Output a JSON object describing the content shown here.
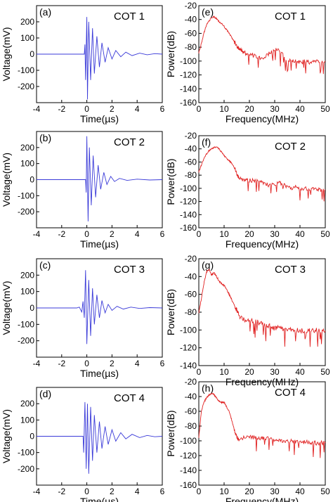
{
  "colors": {
    "time_trace": "#3a3ad8",
    "spectrum_trace": "#e02020",
    "axes": "#000000"
  },
  "chart_data": [
    {
      "type": "line",
      "panel": "(a)",
      "label": "COT 1",
      "xlabel": "Time(µs)",
      "ylabel": "Voltage(mV)",
      "xlim": [
        -4,
        6
      ],
      "ylim": [
        -300,
        300
      ],
      "xticks": [
        "-4",
        "-2",
        "0",
        "2",
        "4",
        "6"
      ],
      "yticks": [
        "-200",
        "-100",
        "0",
        "100",
        "200"
      ],
      "series": [
        {
          "values": [
            [
              -4,
              0
            ],
            [
              -0.2,
              0
            ],
            [
              -0.15,
              60
            ],
            [
              -0.1,
              -160
            ],
            [
              0,
              230
            ],
            [
              0.05,
              -280
            ],
            [
              0.15,
              200
            ],
            [
              0.3,
              -160
            ],
            [
              0.45,
              160
            ],
            [
              0.6,
              -120
            ],
            [
              0.8,
              110
            ],
            [
              1,
              -80
            ],
            [
              1.2,
              70
            ],
            [
              1.45,
              -50
            ],
            [
              1.7,
              40
            ],
            [
              2,
              -30
            ],
            [
              2.3,
              22
            ],
            [
              2.7,
              -16
            ],
            [
              3.1,
              12
            ],
            [
              3.6,
              -9
            ],
            [
              4.2,
              6
            ],
            [
              4.8,
              -4
            ],
            [
              5.4,
              3
            ],
            [
              6,
              0
            ]
          ]
        }
      ]
    },
    {
      "type": "line",
      "panel": "(e)",
      "label": "COT 1",
      "xlabel": "Frequency(MHz)",
      "ylabel": "Power(dB)",
      "xlim": [
        0,
        50
      ],
      "ylim": [
        -160,
        -20
      ],
      "xticks": [
        "0",
        "10",
        "20",
        "30",
        "40",
        "50"
      ],
      "yticks": [
        "-160",
        "-140",
        "-120",
        "-100",
        "-80",
        "-60",
        "-40",
        "-20"
      ],
      "series": [
        {
          "values": [
            [
              0,
              -88
            ],
            [
              1,
              -75
            ],
            [
              2,
              -60
            ],
            [
              3,
              -48
            ],
            [
              4,
              -42
            ],
            [
              5,
              -38
            ],
            [
              6,
              -36
            ],
            [
              7,
              -39
            ],
            [
              8,
              -43
            ],
            [
              9,
              -46
            ],
            [
              10,
              -50
            ],
            [
              11,
              -55
            ],
            [
              12,
              -60
            ],
            [
              13,
              -66
            ],
            [
              14,
              -72
            ],
            [
              15,
              -78
            ],
            [
              16,
              -82
            ],
            [
              17,
              -85
            ],
            [
              18,
              -88
            ],
            [
              20,
              -90
            ],
            [
              22,
              -92
            ],
            [
              24,
              -96
            ],
            [
              26,
              -95
            ],
            [
              28,
              -88
            ],
            [
              30,
              -82
            ],
            [
              32,
              -86
            ],
            [
              34,
              -95
            ],
            [
              36,
              -100
            ],
            [
              38,
              -100
            ],
            [
              40,
              -102
            ],
            [
              42,
              -100
            ],
            [
              44,
              -102
            ],
            [
              46,
              -100
            ],
            [
              48,
              -101
            ],
            [
              50,
              -100
            ]
          ]
        }
      ]
    },
    {
      "type": "line",
      "panel": "(b)",
      "label": "COT 2",
      "xlabel": "Time(µs)",
      "ylabel": "Voltage(mV)",
      "xlim": [
        -4,
        6
      ],
      "ylim": [
        -300,
        300
      ],
      "xticks": [
        "-4",
        "-2",
        "0",
        "2",
        "4",
        "6"
      ],
      "yticks": [
        "-200",
        "-100",
        "0",
        "100",
        "200"
      ],
      "series": [
        {
          "values": [
            [
              -4,
              0
            ],
            [
              -0.1,
              0
            ],
            [
              -0.05,
              -80
            ],
            [
              0,
              270
            ],
            [
              0.1,
              -260
            ],
            [
              0.2,
              200
            ],
            [
              0.35,
              -160
            ],
            [
              0.5,
              150
            ],
            [
              0.7,
              -110
            ],
            [
              0.9,
              90
            ],
            [
              1.1,
              -60
            ],
            [
              1.35,
              45
            ],
            [
              1.6,
              -30
            ],
            [
              1.9,
              20
            ],
            [
              2.2,
              -12
            ],
            [
              2.6,
              8
            ],
            [
              3.2,
              -5
            ],
            [
              4,
              3
            ],
            [
              5,
              -2
            ],
            [
              6,
              0
            ]
          ]
        }
      ]
    },
    {
      "type": "line",
      "panel": "(f)",
      "label": "COT 2",
      "xlabel": "Frequency(MHz)",
      "ylabel": "Power(dB)",
      "xlim": [
        0,
        50
      ],
      "ylim": [
        -160,
        -20
      ],
      "xticks": [
        "0",
        "10",
        "20",
        "30",
        "40",
        "50"
      ],
      "yticks": [
        "-160",
        "-140",
        "-120",
        "-100",
        "-80",
        "-60",
        "-40",
        "-20"
      ],
      "series": [
        {
          "values": [
            [
              0,
              -75
            ],
            [
              1,
              -65
            ],
            [
              2,
              -55
            ],
            [
              3,
              -48
            ],
            [
              4,
              -43
            ],
            [
              5,
              -40
            ],
            [
              6,
              -38
            ],
            [
              7,
              -37
            ],
            [
              8,
              -40
            ],
            [
              9,
              -45
            ],
            [
              10,
              -50
            ],
            [
              11,
              -55
            ],
            [
              12,
              -58
            ],
            [
              13,
              -62
            ],
            [
              14,
              -68
            ],
            [
              15,
              -78
            ],
            [
              16,
              -85
            ],
            [
              18,
              -87
            ],
            [
              20,
              -88
            ],
            [
              22,
              -88
            ],
            [
              24,
              -90
            ],
            [
              26,
              -92
            ],
            [
              28,
              -96
            ],
            [
              30,
              -94
            ],
            [
              32,
              -92
            ],
            [
              34,
              -96
            ],
            [
              36,
              -100
            ],
            [
              38,
              -98
            ],
            [
              40,
              -101
            ],
            [
              42,
              -100
            ],
            [
              44,
              -102
            ],
            [
              46,
              -100
            ],
            [
              48,
              -103
            ],
            [
              50,
              -102
            ]
          ]
        }
      ]
    },
    {
      "type": "line",
      "panel": "(c)",
      "label": "COT 3",
      "xlabel": "Time(µs)",
      "ylabel": "Voltage(mV)",
      "xlim": [
        -4,
        6
      ],
      "ylim": [
        -300,
        300
      ],
      "xticks": [
        "-4",
        "-2",
        "0",
        "2",
        "4",
        "6"
      ],
      "yticks": [
        "-200",
        "-100",
        "0",
        "100",
        "200"
      ],
      "series": [
        {
          "values": [
            [
              -4,
              0
            ],
            [
              -0.8,
              0
            ],
            [
              -0.6,
              5
            ],
            [
              -0.4,
              -25
            ],
            [
              -0.3,
              40
            ],
            [
              -0.2,
              -60
            ],
            [
              -0.1,
              230
            ],
            [
              0,
              -220
            ],
            [
              0.15,
              170
            ],
            [
              0.3,
              -170
            ],
            [
              0.45,
              120
            ],
            [
              0.6,
              -100
            ],
            [
              0.8,
              80
            ],
            [
              1,
              -60
            ],
            [
              1.2,
              45
            ],
            [
              1.45,
              -30
            ],
            [
              1.7,
              22
            ],
            [
              2,
              -15
            ],
            [
              2.4,
              10
            ],
            [
              2.9,
              -7
            ],
            [
              3.5,
              5
            ],
            [
              4.2,
              -3
            ],
            [
              5,
              2
            ],
            [
              6,
              0
            ]
          ]
        }
      ]
    },
    {
      "type": "line",
      "panel": "(g)",
      "label": "COT 3",
      "xlabel": "Frequency(MHz)",
      "ylabel": "Power(dB)",
      "xlim": [
        0,
        50
      ],
      "ylim": [
        -140,
        -20
      ],
      "xticks": [
        "0",
        "10",
        "20",
        "30",
        "40",
        "50"
      ],
      "yticks": [
        "-140",
        "-120",
        "-100",
        "-80",
        "-60",
        "-40",
        "-20"
      ],
      "series": [
        {
          "values": [
            [
              0,
              -80
            ],
            [
              1,
              -65
            ],
            [
              2,
              -48
            ],
            [
              3,
              -35
            ],
            [
              4,
              -32
            ],
            [
              5,
              -38
            ],
            [
              6,
              -36
            ],
            [
              7,
              -40
            ],
            [
              8,
              -45
            ],
            [
              9,
              -48
            ],
            [
              10,
              -50
            ],
            [
              11,
              -55
            ],
            [
              12,
              -60
            ],
            [
              13,
              -66
            ],
            [
              14,
              -72
            ],
            [
              15,
              -78
            ],
            [
              16,
              -84
            ],
            [
              18,
              -88
            ],
            [
              20,
              -88
            ],
            [
              22,
              -90
            ],
            [
              24,
              -92
            ],
            [
              26,
              -95
            ],
            [
              28,
              -96
            ],
            [
              30,
              -98
            ],
            [
              32,
              -98
            ],
            [
              34,
              -100
            ],
            [
              36,
              -100
            ],
            [
              38,
              -101
            ],
            [
              40,
              -100
            ],
            [
              42,
              -102
            ],
            [
              44,
              -101
            ],
            [
              46,
              -100
            ],
            [
              48,
              -102
            ],
            [
              50,
              -101
            ]
          ]
        }
      ]
    },
    {
      "type": "line",
      "panel": "(d)",
      "label": "COT 4",
      "xlabel": "Time(µs)",
      "ylabel": "Voltage(mV)",
      "xlim": [
        -4,
        6
      ],
      "ylim": [
        -300,
        300
      ],
      "xticks": [
        "-4",
        "-2",
        "0",
        "2",
        "4",
        "6"
      ],
      "yticks": [
        "-200",
        "-100",
        "0",
        "100",
        "200"
      ],
      "series": [
        {
          "values": [
            [
              -4,
              0
            ],
            [
              -0.3,
              0
            ],
            [
              -0.25,
              -100
            ],
            [
              -0.15,
              210
            ],
            [
              -0.05,
              -200
            ],
            [
              0.05,
              200
            ],
            [
              0.15,
              -230
            ],
            [
              0.3,
              180
            ],
            [
              0.45,
              -150
            ],
            [
              0.6,
              130
            ],
            [
              0.8,
              -100
            ],
            [
              1,
              90
            ],
            [
              1.2,
              -75
            ],
            [
              1.45,
              60
            ],
            [
              1.7,
              -50
            ],
            [
              2,
              40
            ],
            [
              2.3,
              -30
            ],
            [
              2.7,
              22
            ],
            [
              3.1,
              -16
            ],
            [
              3.6,
              12
            ],
            [
              4.2,
              -8
            ],
            [
              4.8,
              5
            ],
            [
              5.4,
              -3
            ],
            [
              6,
              0
            ]
          ]
        }
      ]
    },
    {
      "type": "line",
      "panel": "(h)",
      "label": "COT 4",
      "xlabel": "Frequency(MHz)",
      "ylabel": "Power(dB)",
      "xlim": [
        0,
        50
      ],
      "ylim": [
        -160,
        -20
      ],
      "xticks": [
        "0",
        "10",
        "20",
        "30",
        "40",
        "50"
      ],
      "yticks": [
        "-160",
        "-140",
        "-120",
        "-100",
        "-80",
        "-60",
        "-40",
        "-20"
      ],
      "series": [
        {
          "values": [
            [
              0,
              -95
            ],
            [
              1,
              -60
            ],
            [
              2,
              -48
            ],
            [
              3,
              -42
            ],
            [
              4,
              -38
            ],
            [
              5,
              -36
            ],
            [
              6,
              -37
            ],
            [
              7,
              -42
            ],
            [
              8,
              -46
            ],
            [
              9,
              -48
            ],
            [
              10,
              -48
            ],
            [
              11,
              -54
            ],
            [
              12,
              -60
            ],
            [
              13,
              -72
            ],
            [
              14,
              -85
            ],
            [
              15,
              -95
            ],
            [
              16,
              -100
            ],
            [
              18,
              -96
            ],
            [
              20,
              -94
            ],
            [
              22,
              -96
            ],
            [
              24,
              -98
            ],
            [
              26,
              -96
            ],
            [
              28,
              -98
            ],
            [
              30,
              -98
            ],
            [
              32,
              -99
            ],
            [
              34,
              -100
            ],
            [
              36,
              -100
            ],
            [
              38,
              -101
            ],
            [
              40,
              -101
            ],
            [
              42,
              -102
            ],
            [
              44,
              -102
            ],
            [
              46,
              -103
            ],
            [
              48,
              -103
            ],
            [
              50,
              -103
            ]
          ]
        }
      ]
    }
  ]
}
